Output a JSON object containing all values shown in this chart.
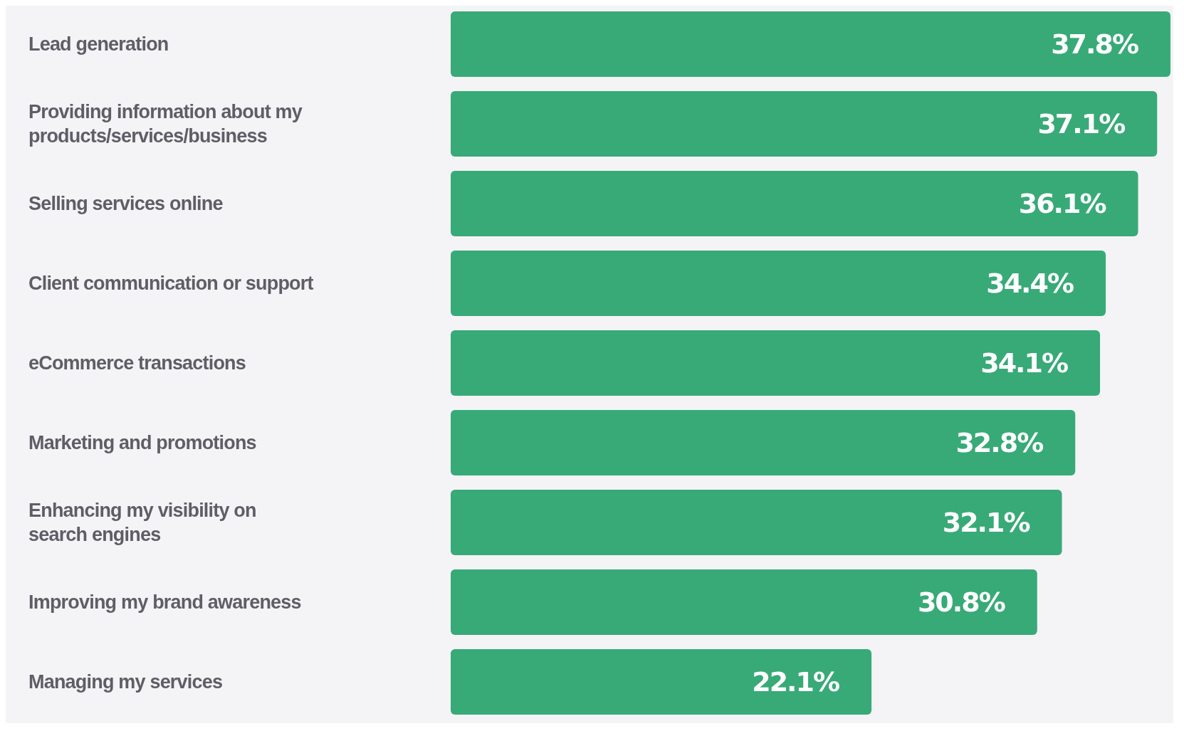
{
  "chart_data": {
    "type": "bar",
    "orientation": "horizontal",
    "categories": [
      "Lead generation",
      "Providing information about my products/services/business",
      "Selling services online",
      "Client communication or support",
      "eCommerce transactions",
      "Marketing and promotions",
      "Enhancing my visibility on search engines",
      "Improving my brand awareness",
      "Managing my services"
    ],
    "values": [
      37.8,
      37.1,
      36.1,
      34.4,
      34.1,
      32.8,
      32.1,
      30.8,
      22.1
    ],
    "value_labels": [
      "37.8%",
      "37.1%",
      "36.1%",
      "34.4%",
      "34.1%",
      "32.8%",
      "32.1%",
      "30.8%",
      "22.1%"
    ],
    "color": "#38aa77"
  }
}
